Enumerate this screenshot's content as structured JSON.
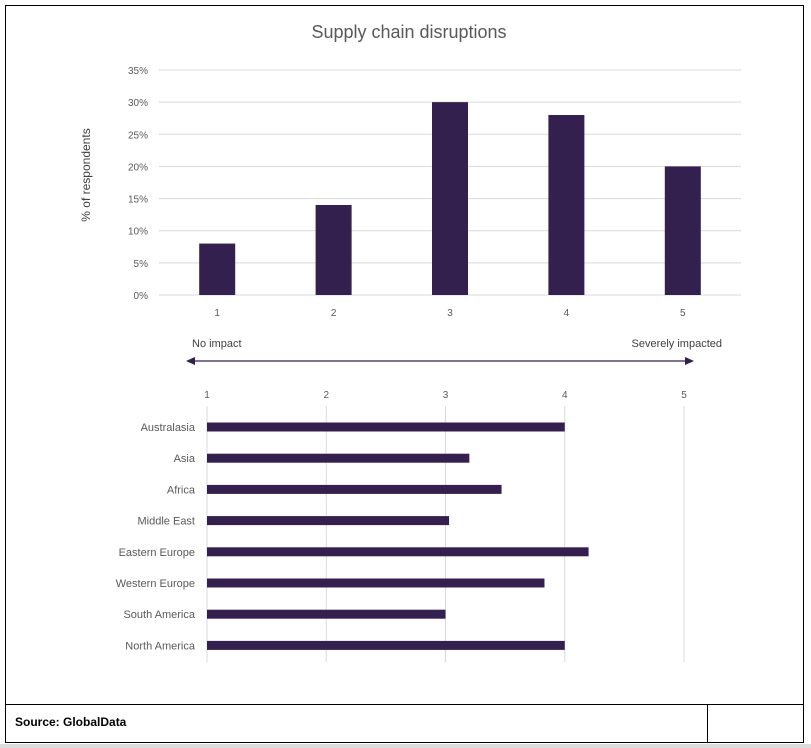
{
  "source_label": "Source: GlobalData",
  "colors": {
    "bar": "#34204f",
    "grid": "#d9d9d9",
    "text": "#595959"
  },
  "scale_labels": {
    "left": "No impact",
    "right": "Severely impacted"
  },
  "chart_data": [
    {
      "type": "bar",
      "title": "Supply chain disruptions",
      "ylabel": "% of respondents",
      "categories": [
        "1",
        "2",
        "3",
        "4",
        "5"
      ],
      "values": [
        8,
        14,
        30,
        28,
        20
      ],
      "ylim": [
        0,
        35
      ],
      "yticks": [
        "0%",
        "5%",
        "10%",
        "15%",
        "20%",
        "25%",
        "30%",
        "35%"
      ],
      "grid": true
    },
    {
      "type": "bar",
      "orientation": "horizontal",
      "categories": [
        "Australasia",
        "Asia",
        "Africa",
        "Middle East",
        "Eastern Europe",
        "Western Europe",
        "South America",
        "North America"
      ],
      "values": [
        4.0,
        3.2,
        3.47,
        3.03,
        4.2,
        3.83,
        3.0,
        4.0
      ],
      "xlim": [
        1,
        5
      ],
      "xticks": [
        "1",
        "2",
        "3",
        "4",
        "5"
      ],
      "grid": true
    }
  ]
}
